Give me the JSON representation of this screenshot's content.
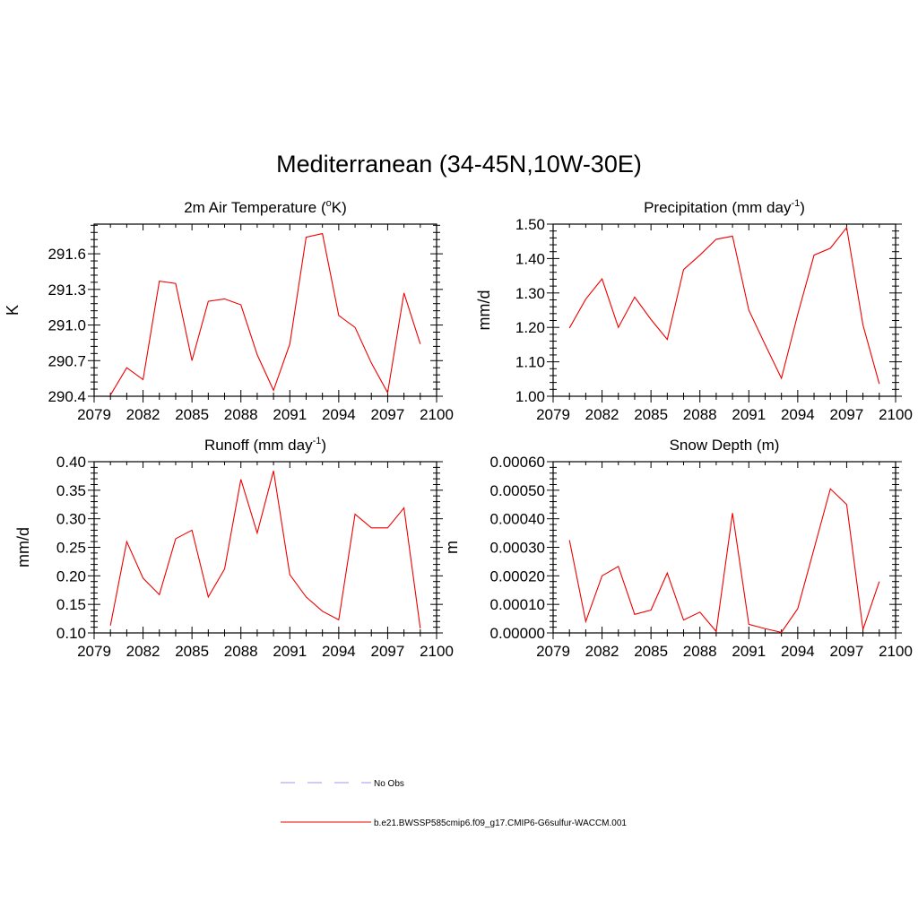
{
  "title": "Mediterranean (34-45N,10W-30E)",
  "chart_data": [
    {
      "type": "line",
      "title": "2m Air Temperature (",
      "title_sup": "o",
      "title_after": "K)",
      "ylabel": "K",
      "xlim": [
        2079,
        2100
      ],
      "ylim": [
        290.4,
        291.85
      ],
      "xticks": [
        "2079",
        "2082",
        "2085",
        "2088",
        "2091",
        "2094",
        "2097",
        "2100"
      ],
      "yticks": [
        "290.4",
        "290.7",
        "291.0",
        "291.3",
        "291.6"
      ],
      "series": [
        {
          "x": [
            2080,
            2081,
            2082,
            2083,
            2084,
            2085,
            2086,
            2087,
            2088,
            2089,
            2090,
            2091,
            2092,
            2093,
            2094,
            2095,
            2096,
            2097,
            2098,
            2099
          ],
          "y": [
            290.41,
            290.64,
            290.54,
            291.37,
            291.35,
            290.7,
            291.2,
            291.22,
            291.17,
            290.75,
            290.45,
            290.84,
            291.74,
            291.77,
            291.08,
            290.98,
            290.68,
            290.43,
            291.27,
            290.84
          ]
        }
      ]
    },
    {
      "type": "line",
      "title": "Precipitation (mm day",
      "title_sup": "-1",
      "title_after": ")",
      "ylabel": "mm/d",
      "xlim": [
        2079,
        2100
      ],
      "ylim": [
        1.0,
        1.5
      ],
      "xticks": [
        "2079",
        "2082",
        "2085",
        "2088",
        "2091",
        "2094",
        "2097",
        "2100"
      ],
      "yticks": [
        "1.00",
        "1.10",
        "1.20",
        "1.30",
        "1.40",
        "1.50"
      ],
      "series": [
        {
          "x": [
            2080,
            2081,
            2082,
            2083,
            2084,
            2085,
            2086,
            2087,
            2088,
            2089,
            2090,
            2091,
            2092,
            2093,
            2094,
            2095,
            2096,
            2097,
            2098,
            2099
          ],
          "y": [
            1.198,
            1.282,
            1.341,
            1.2,
            1.288,
            1.223,
            1.165,
            1.368,
            1.41,
            1.456,
            1.465,
            1.25,
            1.15,
            1.052,
            1.238,
            1.41,
            1.43,
            1.49,
            1.207,
            1.036
          ]
        }
      ]
    },
    {
      "type": "line",
      "title": "Runoff (mm day",
      "title_sup": "-1",
      "title_after": ")",
      "ylabel": "mm/d",
      "xlim": [
        2079,
        2100
      ],
      "ylim": [
        0.1,
        0.4
      ],
      "xticks": [
        "2079",
        "2082",
        "2085",
        "2088",
        "2091",
        "2094",
        "2097",
        "2100"
      ],
      "yticks": [
        "0.10",
        "0.15",
        "0.20",
        "0.25",
        "0.30",
        "0.35",
        "0.40"
      ],
      "series": [
        {
          "x": [
            2080,
            2081,
            2082,
            2083,
            2084,
            2085,
            2086,
            2087,
            2088,
            2089,
            2090,
            2091,
            2092,
            2093,
            2094,
            2095,
            2096,
            2097,
            2098,
            2099
          ],
          "y": [
            0.113,
            0.26,
            0.196,
            0.167,
            0.265,
            0.28,
            0.163,
            0.212,
            0.369,
            0.275,
            0.384,
            0.202,
            0.163,
            0.138,
            0.123,
            0.308,
            0.284,
            0.284,
            0.319,
            0.108
          ]
        }
      ]
    },
    {
      "type": "line",
      "title": "Snow Depth (m)",
      "title_sup": "",
      "title_after": "",
      "ylabel": "m",
      "xlim": [
        2079,
        2100
      ],
      "ylim": [
        0.0,
        0.0006
      ],
      "xticks": [
        "2079",
        "2082",
        "2085",
        "2088",
        "2091",
        "2094",
        "2097",
        "2100"
      ],
      "yticks": [
        "0.00000",
        "0.00010",
        "0.00020",
        "0.00030",
        "0.00040",
        "0.00050",
        "0.00060"
      ],
      "series": [
        {
          "x": [
            2080,
            2081,
            2082,
            2083,
            2084,
            2085,
            2086,
            2087,
            2088,
            2089,
            2090,
            2091,
            2092,
            2093,
            2094,
            2095,
            2096,
            2097,
            2098,
            2099
          ],
          "y": [
            0.000325,
            4e-05,
            0.0002,
            0.000233,
            6.5e-05,
            8e-05,
            0.00021,
            4.5e-05,
            7.3e-05,
            5e-06,
            0.00042,
            3e-05,
            1.5e-05,
            2e-06,
            8.5e-05,
            0.000295,
            0.000505,
            0.00045,
            1.2e-05,
            0.00018
          ]
        }
      ]
    }
  ],
  "legend": [
    {
      "label": "No Obs",
      "color": "#9999ee",
      "dash": true
    },
    {
      "label": "b.e21.BWSSP585cmip6.f09_g17.CMIP6-G6sulfur-WACCM.001",
      "color": "#ee0000",
      "dash": false
    }
  ],
  "line_color": "#ee0000"
}
